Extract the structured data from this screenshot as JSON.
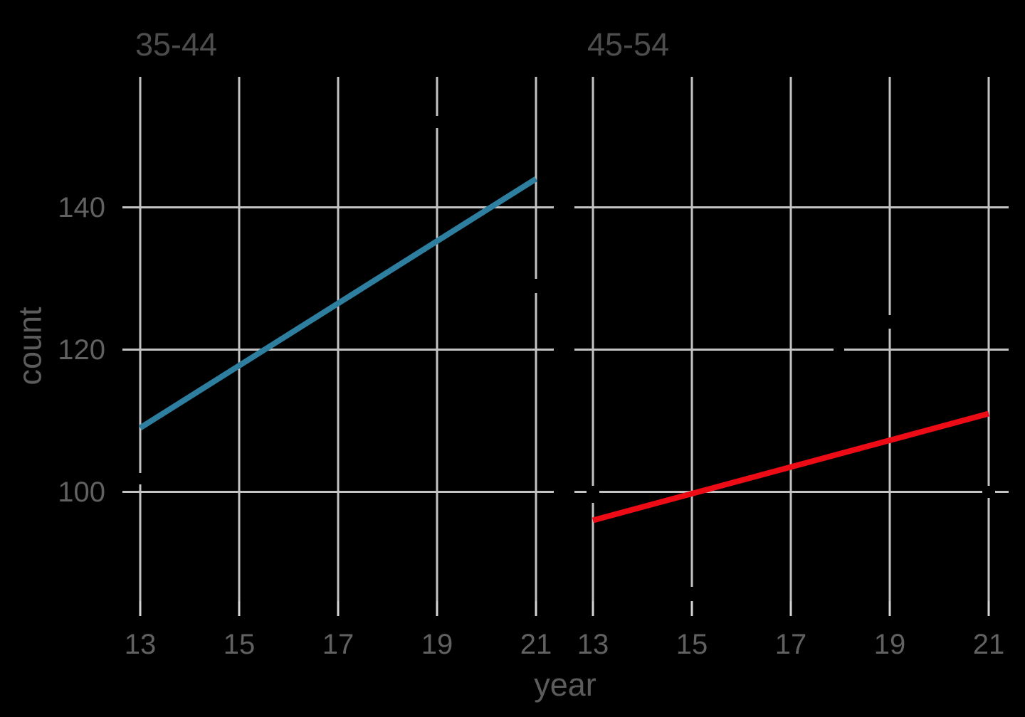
{
  "colors": {
    "background": "#000000",
    "gridline": "#c3c3c3",
    "axis_tick": "#d5d5d5",
    "strip_text": "#4d4d4d",
    "axis_text": "#616161",
    "axis_title": "#5c5c5c",
    "series_35_44": "#2e7f9f",
    "series_45_54": "#ed0c16"
  },
  "chart_data": {
    "type": "line",
    "title": "",
    "xlabel": "year",
    "ylabel": "count",
    "x_ticks": [
      13,
      15,
      17,
      19,
      21
    ],
    "y_ticks": [
      140,
      120,
      100
    ],
    "xlim": [
      12.6,
      21.4
    ],
    "ylim": [
      84.5,
      158.5
    ],
    "grid": true,
    "legend": "none",
    "facet_titles": [
      "35-44",
      "45-54"
    ],
    "facets": [
      {
        "title": "35-44",
        "series": [
          {
            "name": "35-44",
            "color": "#2e7f9f",
            "x": [
              13,
              21
            ],
            "y": [
              109,
              144
            ]
          }
        ]
      },
      {
        "title": "45-54",
        "series": [
          {
            "name": "45-54",
            "color": "#ed0c16",
            "x": [
              13,
              21
            ],
            "y": [
              96,
              111
            ]
          }
        ]
      }
    ]
  }
}
